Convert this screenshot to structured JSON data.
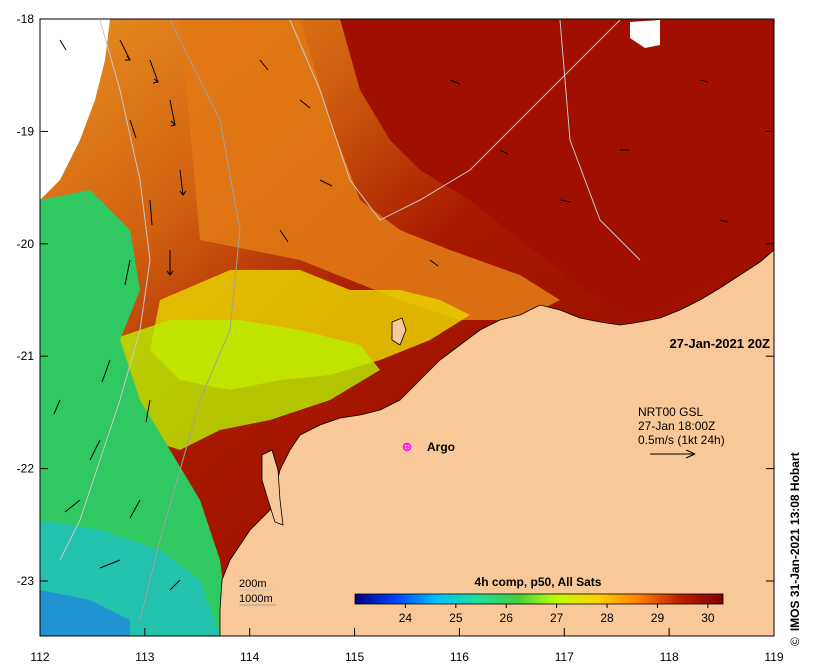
{
  "map": {
    "timestamp": "27-Jan-2021 20Z",
    "composite_label": "4h comp, p50, All Sats",
    "colorbar": {
      "ticks": [
        "24",
        "25",
        "26",
        "27",
        "28",
        "29",
        "30"
      ],
      "range": [
        23.0,
        30.3
      ],
      "stops": [
        "#00007f",
        "#0040ff",
        "#00c0ff",
        "#20e0a0",
        "#40d040",
        "#c0ff00",
        "#ffd000",
        "#ff8000",
        "#c02000",
        "#7f0000"
      ]
    },
    "current_legend": {
      "line1": "NRT00 GSL",
      "line2": "27-Jan 18:00Z",
      "line3": "0.5m/s (1kt 24h)"
    },
    "depth_legend": {
      "line1": "200m",
      "line2": "1000m"
    },
    "argo": {
      "label": "Argo",
      "lon": 115.45,
      "lat": -21.85,
      "color": "#ff00ff"
    },
    "credit": {
      "copyright": "©",
      "text": "IMOS 31-Jan-2021 13:08 Hobart"
    },
    "axes": {
      "lon_ticks": [
        "112",
        "113",
        "114",
        "115",
        "116",
        "117",
        "118",
        "119"
      ],
      "lat_ticks": [
        "-18",
        "-19",
        "-20",
        "-21",
        "-22",
        "-23"
      ]
    },
    "colors": {
      "land": "#f8c898",
      "warm": "#a01000",
      "cool": "#30c870"
    }
  }
}
